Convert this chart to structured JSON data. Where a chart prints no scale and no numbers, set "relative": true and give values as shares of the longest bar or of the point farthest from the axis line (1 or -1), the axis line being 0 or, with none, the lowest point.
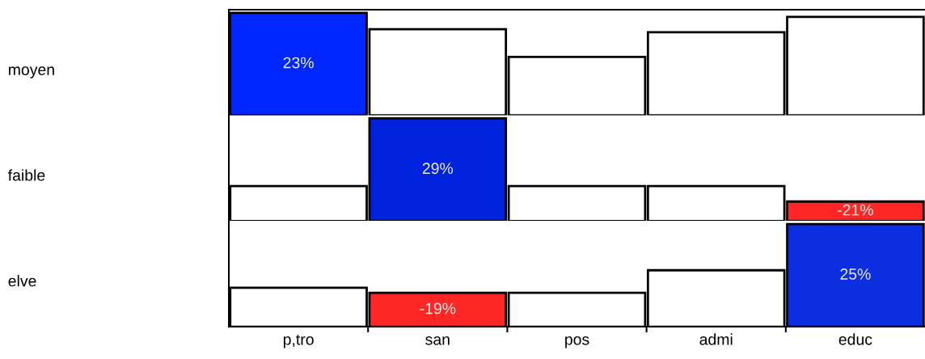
{
  "chart_data": [
    {
      "type": "bar",
      "ylabel": "moyen",
      "relative": true,
      "tick_labels": false,
      "categories": [
        null,
        null,
        null,
        null,
        null
      ],
      "values": [
        1,
        0.84,
        0.57,
        0.81,
        0.96
      ],
      "colors": [
        "#0026ff",
        "#ffffff",
        "#ffffff",
        "#ffffff",
        "#ffffff"
      ],
      "annotations": [
        "23%"
      ]
    },
    {
      "type": "bar",
      "ylabel": "faible",
      "relative": true,
      "tick_labels": false,
      "categories": [
        null,
        null,
        null,
        null,
        null
      ],
      "values": [
        0.34,
        1,
        0.34,
        0.34,
        0.19
      ],
      "colors": [
        "#ffffff",
        "#0022dd",
        "#ffffff",
        "#ffffff",
        "#ff2626"
      ],
      "annotations": [
        "29%",
        "-21%"
      ]
    },
    {
      "type": "bar",
      "ylabel": "elve",
      "relative": true,
      "tick_labels": "x",
      "categories": [
        "p,tro",
        "san",
        "pos",
        "admi",
        "educ"
      ],
      "values": [
        0.38,
        0.33,
        0.33,
        0.55,
        1
      ],
      "colors": [
        "#ffffff",
        "#ff2626",
        "#ffffff",
        "#ffffff",
        "#0b2ee0"
      ],
      "annotations": [
        "-19%",
        "25%"
      ]
    }
  ]
}
